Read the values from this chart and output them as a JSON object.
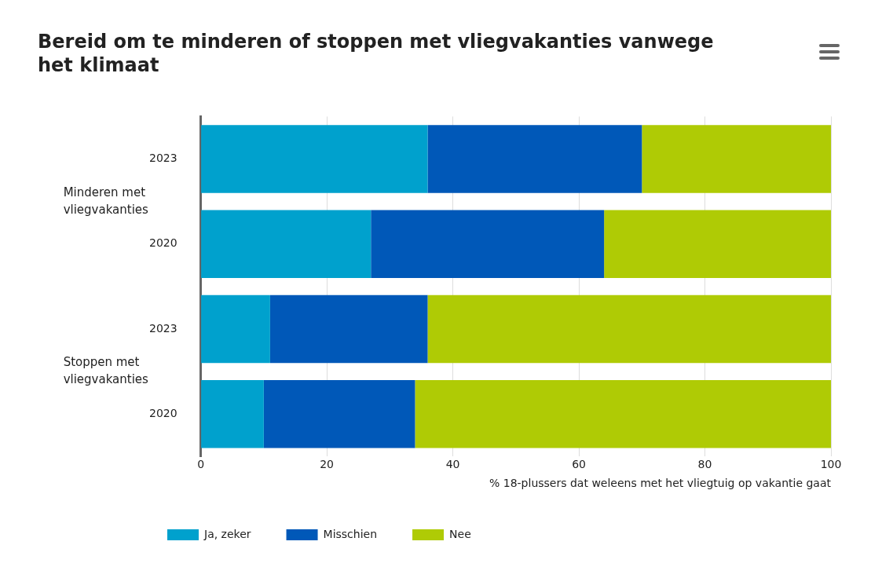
{
  "chart_data": {
    "type": "bar",
    "orientation": "horizontal",
    "stacked": true,
    "title": "Bereid om te minderen of stoppen met vliegvakanties vanwege het klimaat",
    "xlabel": "% 18-plussers dat weleens met het vliegtuig op vakantie gaat",
    "categories": [
      "2023",
      "2020",
      "2023",
      "2020"
    ],
    "annotations": [
      "Minderen met vliegvakanties",
      "Stoppen met vliegvakanties"
    ],
    "series": [
      {
        "name": "Ja, zeker",
        "color": "#00a1cd",
        "values": [
          36,
          27,
          11,
          10
        ]
      },
      {
        "name": "Misschien",
        "color": "#0058b8",
        "values": [
          34,
          37,
          25,
          24
        ]
      },
      {
        "name": "Nee",
        "color": "#afcb05",
        "values": [
          30,
          36,
          64,
          66
        ]
      }
    ],
    "xlim": [
      0,
      100
    ],
    "xticks": [
      0,
      20,
      40,
      60,
      80,
      100
    ],
    "grid": "x",
    "legend": "bottom left"
  }
}
